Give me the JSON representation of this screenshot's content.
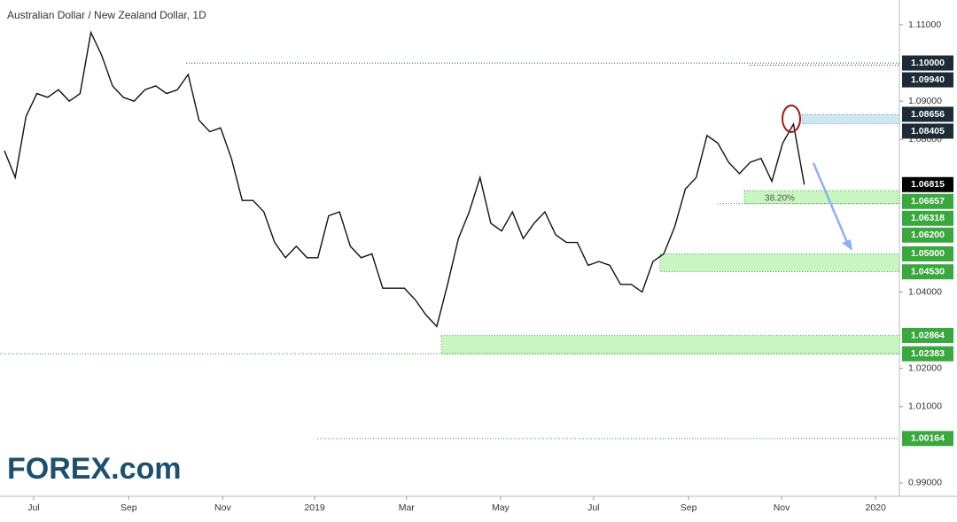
{
  "chart_data": {
    "type": "line",
    "title": "Australian Dollar / New Zealand Dollar, 1D",
    "logo": "FOREX.com",
    "annotation": "38.20%",
    "series": [
      {
        "name": "AUD/NZD",
        "color": "#111111",
        "values": [
          1.077,
          1.07,
          1.086,
          1.092,
          1.091,
          1.093,
          1.09,
          1.092,
          1.108,
          1.102,
          1.094,
          1.091,
          1.09,
          1.093,
          1.094,
          1.092,
          1.093,
          1.097,
          1.085,
          1.082,
          1.083,
          1.075,
          1.064,
          1.064,
          1.061,
          1.053,
          1.049,
          1.052,
          1.049,
          1.049,
          1.06,
          1.061,
          1.052,
          1.049,
          1.05,
          1.041,
          1.041,
          1.041,
          1.038,
          1.034,
          1.031,
          1.042,
          1.054,
          1.061,
          1.07,
          1.058,
          1.056,
          1.061,
          1.054,
          1.058,
          1.061,
          1.055,
          1.053,
          1.053,
          1.047,
          1.048,
          1.047,
          1.042,
          1.042,
          1.04,
          1.048,
          1.05,
          1.057,
          1.067,
          1.07,
          1.081,
          1.079,
          1.074,
          1.071,
          1.074,
          1.075,
          1.069,
          1.079,
          1.084,
          1.06815
        ]
      }
    ],
    "xlim": [
      0,
      82.8
    ],
    "xticks": [
      {
        "value": 2.7,
        "label": "Jul"
      },
      {
        "value": 11.5,
        "label": "Sep"
      },
      {
        "value": 20.2,
        "label": "Nov"
      },
      {
        "value": 28.7,
        "label": "2019"
      },
      {
        "value": 37.2,
        "label": "Mar"
      },
      {
        "value": 45.9,
        "label": "May"
      },
      {
        "value": 54.5,
        "label": "Jul"
      },
      {
        "value": 63.3,
        "label": "Sep"
      },
      {
        "value": 71.9,
        "label": "Nov"
      },
      {
        "value": 80.6,
        "label": "2020"
      }
    ],
    "ylim": [
      0.9865,
      1.1165
    ],
    "yticks": [
      {
        "value": 1.11,
        "label": "1.11000"
      },
      {
        "value": 1.09,
        "label": "1.09000"
      },
      {
        "value": 1.08,
        "label": "1.08000"
      },
      {
        "value": 1.04,
        "label": "1.04000"
      },
      {
        "value": 1.02,
        "label": "1.02000"
      },
      {
        "value": 1.01,
        "label": "1.01000"
      },
      {
        "value": 0.99,
        "label": "0.99000"
      }
    ],
    "levels": [
      {
        "value": 1.1,
        "label": "1.10000",
        "color": "#1c2b36"
      },
      {
        "value": 1.0994,
        "label": "1.09940",
        "color": "#1c2b36"
      },
      {
        "value": 1.08656,
        "label": "1.08656",
        "color": "#1c2b36"
      },
      {
        "value": 1.08405,
        "label": "1.08405",
        "color": "#1c2b36"
      },
      {
        "value": 1.06815,
        "label": "1.06815",
        "color": "#000000"
      },
      {
        "value": 1.06657,
        "label": "1.06657",
        "color": "#3aa83f"
      },
      {
        "value": 1.06318,
        "label": "1.06318",
        "color": "#3aa83f"
      },
      {
        "value": 1.062,
        "label": "1.06200",
        "color": "#3aa83f"
      },
      {
        "value": 1.05,
        "label": "1.05000",
        "color": "#3aa83f"
      },
      {
        "value": 1.0453,
        "label": "1.04530",
        "color": "#3aa83f"
      },
      {
        "value": 1.02864,
        "label": "1.02864",
        "color": "#3aa83f"
      },
      {
        "value": 1.02383,
        "label": "1.02383",
        "color": "#3aa83f"
      },
      {
        "value": 1.00164,
        "label": "1.00164",
        "color": "#3aa83f"
      }
    ]
  }
}
